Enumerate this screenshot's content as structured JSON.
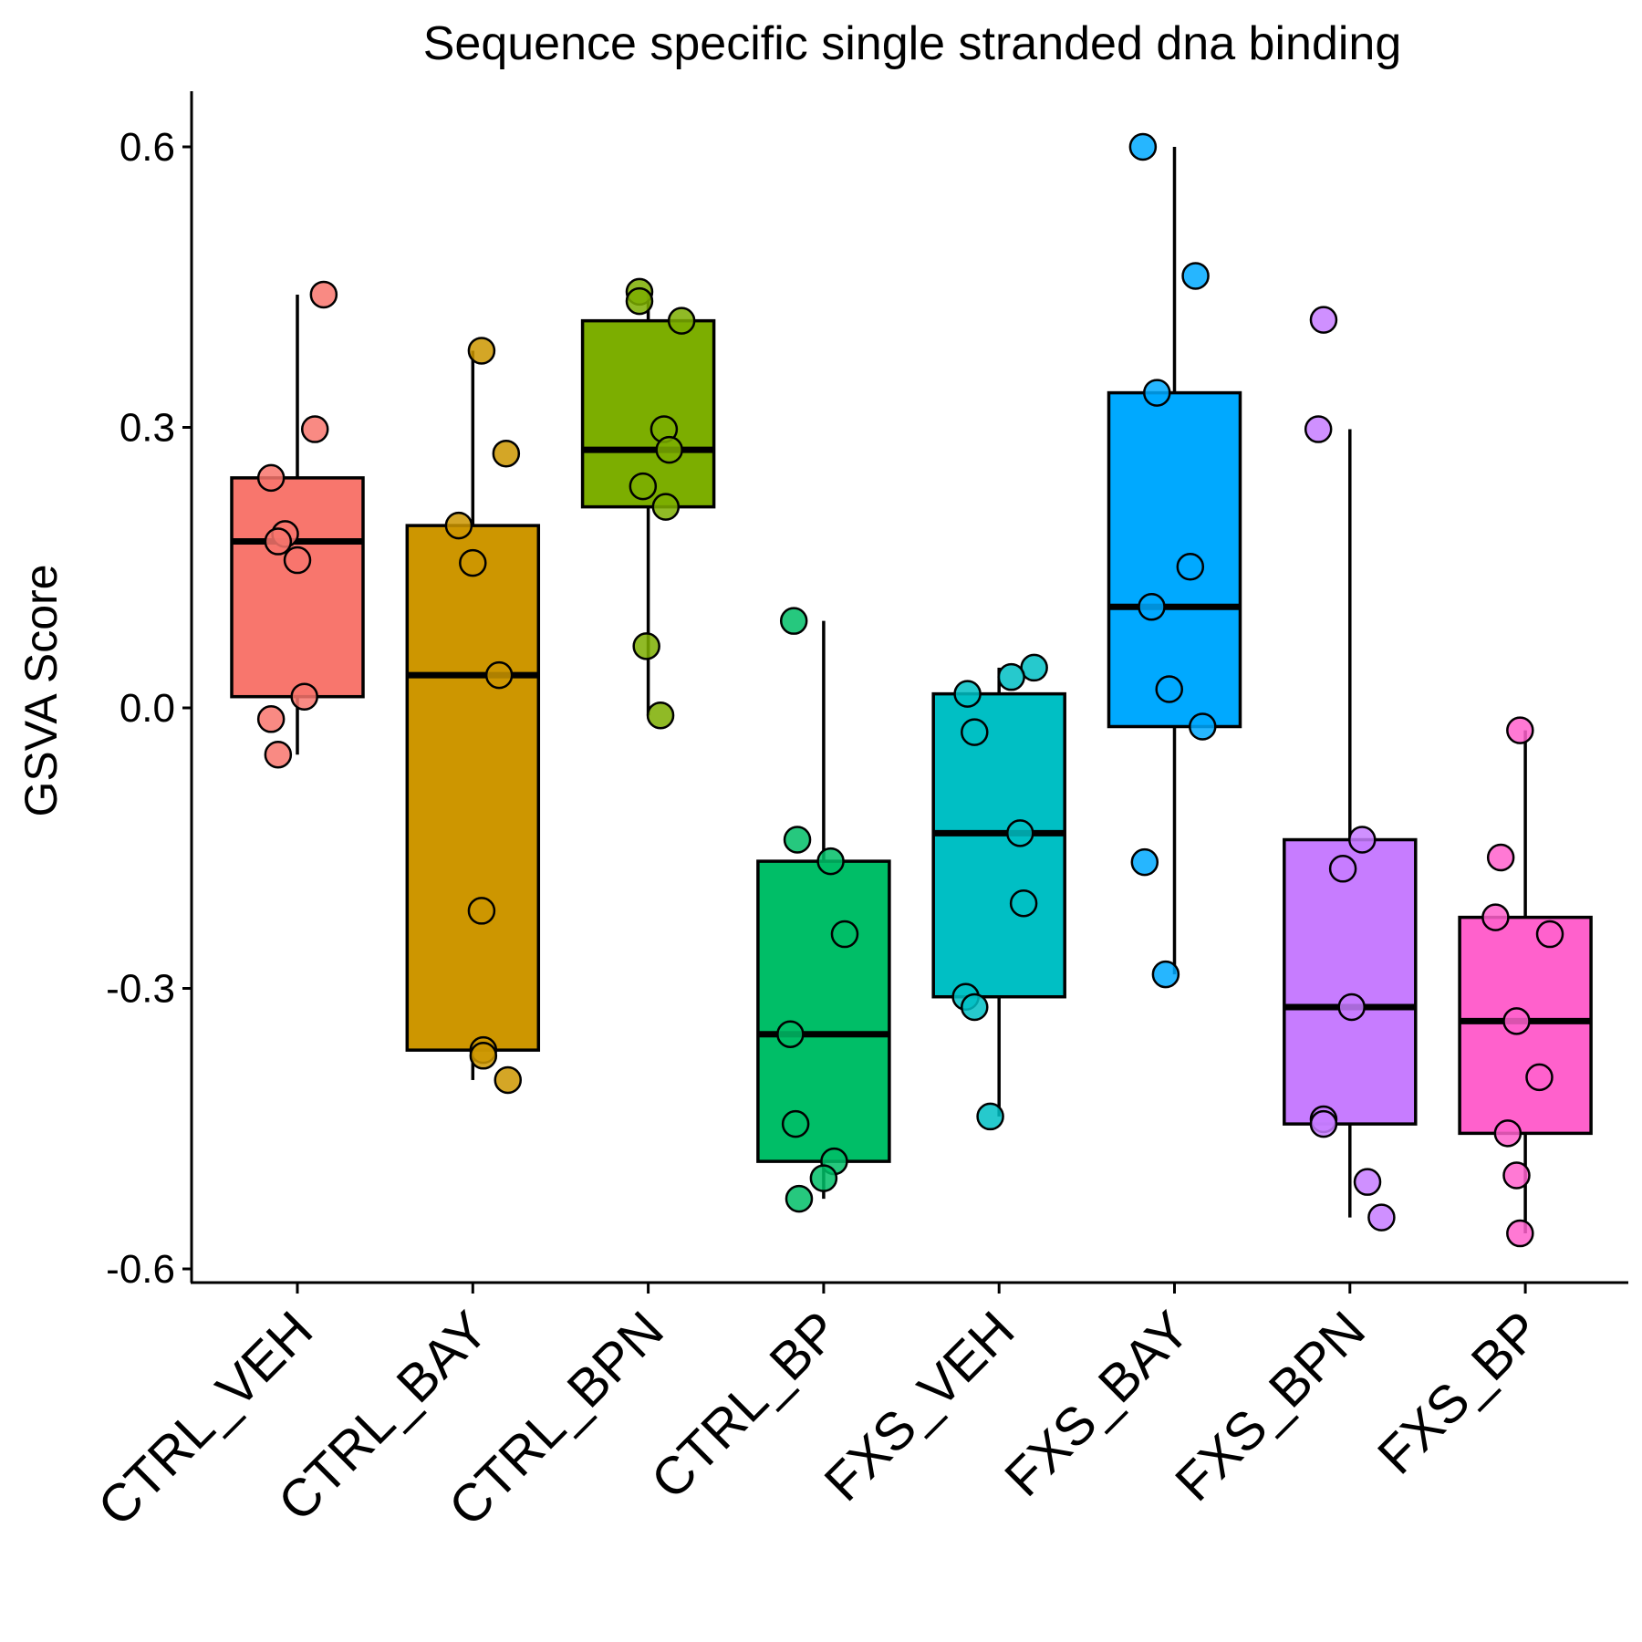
{
  "chart_data": {
    "type": "box",
    "title": "Sequence specific single stranded dna binding",
    "xlabel": "",
    "ylabel": "GSVA Score",
    "ylim": [
      -0.62,
      0.65
    ],
    "yticks": [
      0.6,
      0.3,
      0.0,
      -0.3,
      -0.6
    ],
    "ytick_labels": [
      "0.6",
      "0.3",
      "0.0",
      "-0.3",
      "-0.6"
    ],
    "legend": "none",
    "grid": false,
    "categories": [
      "CTRL_VEH",
      "CTRL_BAY",
      "CTRL_BPN",
      "CTRL_BP",
      "FXS_VEH",
      "FXS_BAY",
      "FXS_BPN",
      "FXS_BP"
    ],
    "colors": [
      "#F8766D",
      "#CD9600",
      "#7CAE00",
      "#00BE67",
      "#00BFC4",
      "#00A9FF",
      "#C77CFF",
      "#FF61CC"
    ],
    "boxes": [
      {
        "category": "CTRL_VEH",
        "whisker_low": -0.05,
        "q1": 0.012,
        "median": 0.178,
        "q3": 0.246,
        "whisker_high": 0.442
      },
      {
        "category": "CTRL_BAY",
        "whisker_low": -0.398,
        "q1": -0.366,
        "median": 0.035,
        "q3": 0.195,
        "whisker_high": 0.382
      },
      {
        "category": "CTRL_BPN",
        "whisker_low": -0.008,
        "q1": 0.215,
        "median": 0.276,
        "q3": 0.414,
        "whisker_high": 0.445
      },
      {
        "category": "CTRL_BP",
        "whisker_low": -0.525,
        "q1": -0.485,
        "median": -0.349,
        "q3": -0.164,
        "whisker_high": 0.093
      },
      {
        "category": "FXS_VEH",
        "whisker_low": -0.437,
        "q1": -0.309,
        "median": -0.134,
        "q3": 0.015,
        "whisker_high": 0.043
      },
      {
        "category": "FXS_BAY",
        "whisker_low": -0.285,
        "q1": -0.02,
        "median": 0.108,
        "q3": 0.337,
        "whisker_high": 0.6
      },
      {
        "category": "FXS_BPN",
        "whisker_low": -0.545,
        "q1": -0.445,
        "median": -0.32,
        "q3": -0.141,
        "whisker_high": 0.298
      },
      {
        "category": "FXS_BP",
        "whisker_low": -0.562,
        "q1": -0.455,
        "median": -0.335,
        "q3": -0.224,
        "whisker_high": -0.024
      }
    ],
    "points": [
      {
        "category": "CTRL_VEH",
        "values": [
          0.442,
          0.298,
          0.246,
          0.186,
          0.178,
          0.158,
          0.012,
          -0.012,
          -0.05
        ],
        "offsets": [
          0.15,
          0.1,
          -0.15,
          -0.07,
          -0.11,
          0.0,
          0.04,
          -0.15,
          -0.11
        ]
      },
      {
        "category": "CTRL_BAY",
        "values": [
          0.382,
          0.272,
          0.195,
          0.155,
          0.035,
          -0.217,
          -0.366,
          -0.372,
          -0.398
        ],
        "offsets": [
          0.05,
          0.19,
          -0.08,
          0.0,
          0.15,
          0.05,
          0.06,
          0.06,
          0.2
        ]
      },
      {
        "category": "CTRL_BPN",
        "values": [
          0.445,
          0.435,
          0.414,
          0.298,
          0.276,
          0.237,
          0.215,
          0.066,
          -0.008
        ],
        "offsets": [
          -0.05,
          -0.05,
          0.19,
          0.09,
          0.12,
          -0.03,
          0.1,
          -0.01,
          0.07
        ]
      },
      {
        "category": "CTRL_BP",
        "values": [
          0.093,
          -0.141,
          -0.164,
          -0.242,
          -0.349,
          -0.445,
          -0.485,
          -0.503,
          -0.525
        ],
        "offsets": [
          -0.17,
          -0.15,
          0.04,
          0.12,
          -0.19,
          -0.16,
          0.06,
          0.0,
          -0.14
        ]
      },
      {
        "category": "FXS_VEH",
        "values": [
          0.043,
          0.033,
          0.015,
          -0.026,
          -0.134,
          -0.209,
          -0.309,
          -0.32,
          -0.437
        ],
        "offsets": [
          0.2,
          0.07,
          -0.18,
          -0.14,
          0.12,
          0.14,
          -0.19,
          -0.14,
          -0.05
        ]
      },
      {
        "category": "FXS_BAY",
        "values": [
          0.6,
          0.462,
          0.337,
          0.151,
          0.108,
          0.02,
          -0.02,
          -0.165,
          -0.285
        ],
        "offsets": [
          -0.18,
          0.12,
          -0.1,
          0.09,
          -0.13,
          -0.03,
          0.16,
          -0.17,
          -0.05
        ]
      },
      {
        "category": "FXS_BPN",
        "values": [
          0.415,
          0.298,
          -0.141,
          -0.172,
          -0.32,
          -0.44,
          -0.445,
          -0.507,
          -0.545
        ],
        "offsets": [
          -0.15,
          -0.18,
          0.07,
          -0.04,
          0.01,
          -0.15,
          -0.15,
          0.1,
          0.18
        ]
      },
      {
        "category": "FXS_BP",
        "values": [
          -0.024,
          -0.16,
          -0.224,
          -0.242,
          -0.335,
          -0.395,
          -0.455,
          -0.5,
          -0.562
        ],
        "offsets": [
          -0.03,
          -0.14,
          -0.17,
          0.14,
          -0.05,
          0.08,
          -0.1,
          -0.05,
          -0.03
        ]
      }
    ]
  }
}
